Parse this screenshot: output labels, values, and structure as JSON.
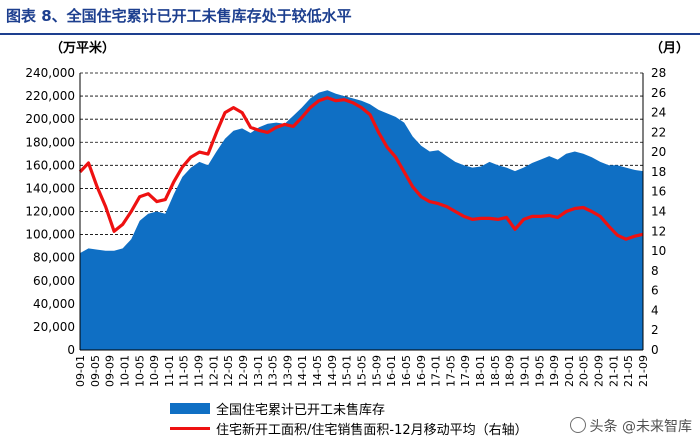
{
  "title": "图表 8、全国住宅累计已开工未售库存处于较低水平",
  "watermark": "头条 @未来智库",
  "chart_data": {
    "type": "area",
    "title": "图表 8、全国住宅累计已开工未售库存处于较低水平",
    "left_axis": {
      "unit_label": "（万平米）",
      "ticks": [
        "240,000",
        "220,000",
        "200,000",
        "180,000",
        "160,000",
        "140,000",
        "120,000",
        "100,000",
        "80,000",
        "60,000",
        "40,000",
        "20,000",
        "0"
      ],
      "ylim": [
        0,
        240000
      ]
    },
    "right_axis": {
      "unit_label": "（月）",
      "ticks": [
        "28",
        "26",
        "24",
        "22",
        "20",
        "18",
        "16",
        "14",
        "12",
        "10",
        "8",
        "6",
        "4",
        "2",
        "0"
      ],
      "ylim": [
        0,
        28
      ]
    },
    "x_ticks": [
      "09-01",
      "09-05",
      "09-09",
      "10-01",
      "10-05",
      "10-09",
      "11-01",
      "11-05",
      "11-09",
      "12-01",
      "12-05",
      "12-09",
      "13-01",
      "13-05",
      "13-09",
      "14-01",
      "14-05",
      "14-09",
      "15-01",
      "15-05",
      "15-09",
      "16-01",
      "16-05",
      "16-09",
      "17-01",
      "17-05",
      "17-09",
      "18-01",
      "18-05",
      "18-09",
      "19-01",
      "19-05",
      "19-09",
      "20-01",
      "20-05",
      "20-09",
      "21-01",
      "21-05",
      "21-09"
    ],
    "grid": true,
    "legend_position": "bottom",
    "series": [
      {
        "name": "全国住宅累计已开工未售库存",
        "axis": "left",
        "type": "area",
        "color": "#0f6fc4",
        "values": [
          84000,
          88000,
          87000,
          86000,
          86000,
          88000,
          96000,
          112000,
          118000,
          120000,
          118000,
          135000,
          150000,
          158000,
          163000,
          160000,
          172000,
          183000,
          190000,
          192000,
          188000,
          193000,
          196000,
          197000,
          196000,
          203000,
          210000,
          218000,
          223000,
          225000,
          222000,
          220000,
          218000,
          216000,
          213000,
          208000,
          205000,
          202000,
          197000,
          185000,
          177000,
          172000,
          173000,
          168000,
          163000,
          160000,
          158000,
          159000,
          163000,
          160000,
          158000,
          155000,
          158000,
          162000,
          165000,
          168000,
          165000,
          170000,
          172000,
          170000,
          167000,
          163000,
          160000,
          160000,
          158000,
          156000,
          155000
        ]
      },
      {
        "name": "住宅新开工面积/住宅销售面积-12月移动平均（右轴）",
        "axis": "right",
        "type": "line",
        "color": "#ee1111",
        "values": [
          18.0,
          18.9,
          16.5,
          14.5,
          12.0,
          12.7,
          14.0,
          15.5,
          15.8,
          15.0,
          15.2,
          17.0,
          18.5,
          19.5,
          20.0,
          19.8,
          22.0,
          24.0,
          24.5,
          24.0,
          22.5,
          22.2,
          22.0,
          22.5,
          22.8,
          22.6,
          23.5,
          24.5,
          25.2,
          25.5,
          25.2,
          25.3,
          25.0,
          24.5,
          23.8,
          22.0,
          20.5,
          19.5,
          18.0,
          16.5,
          15.5,
          15.0,
          14.8,
          14.5,
          14.0,
          13.5,
          13.2,
          13.3,
          13.3,
          13.2,
          13.4,
          12.2,
          13.2,
          13.5,
          13.5,
          13.6,
          13.4,
          14.0,
          14.3,
          14.4,
          14.0,
          13.5,
          12.5,
          11.6,
          11.2,
          11.5,
          11.7
        ]
      }
    ]
  }
}
